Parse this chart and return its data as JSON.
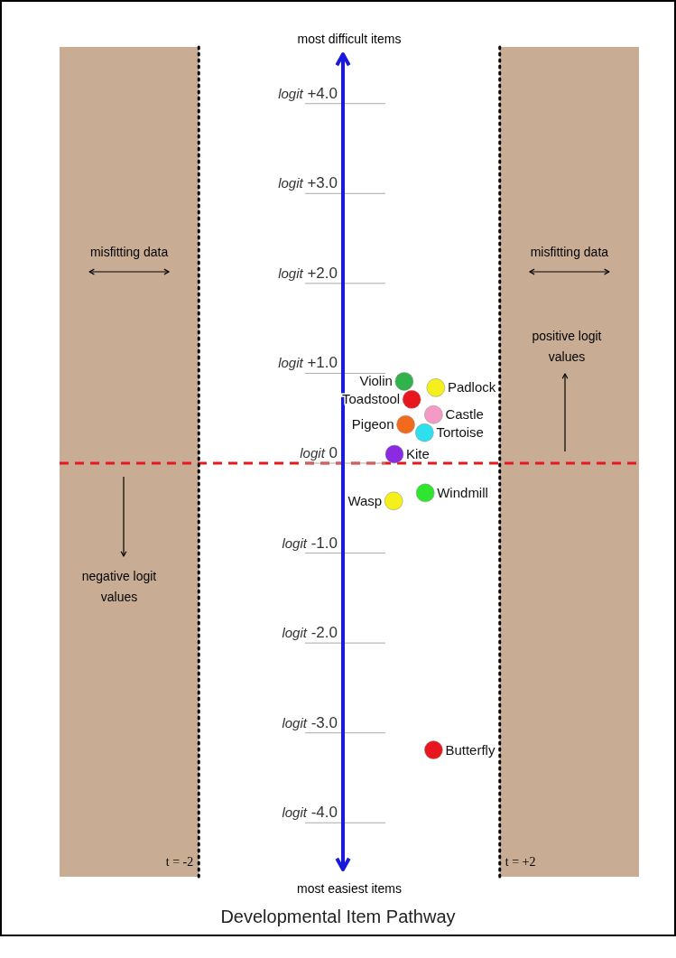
{
  "chart_data": {
    "type": "scatter",
    "title": "Developmental Item Pathway",
    "xlim": [
      -3.85,
      3.85
    ],
    "ylim": [
      -4.6,
      4.6
    ],
    "yticks": [
      {
        "value": 4,
        "label": "logit +4.0"
      },
      {
        "value": 3,
        "label": "logit +3.0"
      },
      {
        "value": 2,
        "label": "logit +2.0"
      },
      {
        "value": 1,
        "label": "logit +1.0"
      },
      {
        "value": 0,
        "label": "logit 0"
      },
      {
        "value": -1,
        "label": "logit -1.0"
      },
      {
        "value": -2,
        "label": "logit -2.0"
      },
      {
        "value": -3,
        "label": "logit -3.0"
      },
      {
        "value": -4,
        "label": "logit -4.0"
      }
    ],
    "tick_labels": "y",
    "marker": "circle",
    "series": [
      {
        "name": "Violin",
        "color": "#2fb34a",
        "x": [
          0.73
        ],
        "values": [
          0.91
        ]
      },
      {
        "name": "Padlock",
        "color": "#f5ef1c",
        "x": [
          1.15
        ],
        "values": [
          0.84
        ]
      },
      {
        "name": "Toadstool",
        "color": "#e8171e",
        "x": [
          0.83
        ],
        "values": [
          0.71
        ]
      },
      {
        "name": "Castle",
        "color": "#f59ac4",
        "x": [
          1.12
        ],
        "values": [
          0.54
        ]
      },
      {
        "name": "Pigeon",
        "color": "#f26a1b",
        "x": [
          0.75
        ],
        "values": [
          0.43
        ]
      },
      {
        "name": "Tortoise",
        "color": "#2ee0ee",
        "x": [
          1.0
        ],
        "values": [
          0.34
        ]
      },
      {
        "name": "Kite",
        "color": "#8a2be2",
        "x": [
          0.6
        ],
        "values": [
          0.1
        ]
      },
      {
        "name": "Windmill",
        "color": "#2ee62e",
        "x": [
          1.01
        ],
        "values": [
          -0.33
        ]
      },
      {
        "name": "Wasp",
        "color": "#f5ef1c",
        "x": [
          0.59
        ],
        "values": [
          -0.42
        ]
      },
      {
        "name": "Butterfly",
        "color": "#e8171e",
        "x": [
          1.12
        ],
        "values": [
          -3.19
        ]
      }
    ],
    "ref_lines": [
      {
        "axis": "y",
        "value": 0,
        "color": "#e8171e",
        "line_style": "dashed"
      },
      {
        "axis": "x",
        "value": -2,
        "label": "t = -2",
        "color": "#000000",
        "line_style": "dotted"
      },
      {
        "axis": "x",
        "value": 2,
        "label": "t = +2",
        "color": "#000000",
        "line_style": "dotted"
      }
    ],
    "bands": [
      {
        "axis": "x",
        "from": -3.85,
        "to": -2,
        "label": "misfitting data",
        "color": "#c8ad94"
      },
      {
        "axis": "x",
        "from": 2,
        "to": 3.85,
        "label": "misfitting data",
        "color": "#c8ad94"
      }
    ],
    "annotations": [
      "most difficult items",
      "most easiest items",
      "positive logit values",
      "negative logit values"
    ]
  }
}
